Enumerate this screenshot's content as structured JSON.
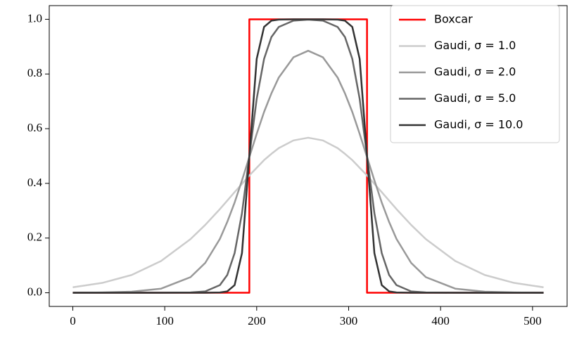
{
  "chart_data": {
    "type": "line",
    "xlim": [
      -25.6,
      537.6
    ],
    "ylim": [
      -0.05,
      1.05
    ],
    "xticks": [
      0,
      100,
      200,
      300,
      400,
      500
    ],
    "yticks": [
      {
        "value": 0,
        "label": "0.0"
      },
      {
        "value": 0.2,
        "label": "0.2"
      },
      {
        "value": 0.4,
        "label": "0.4"
      },
      {
        "value": 0.6,
        "label": "0.6"
      },
      {
        "value": 0.8,
        "label": "0.8"
      },
      {
        "value": 1,
        "label": "1.0"
      }
    ],
    "legend": "upper right",
    "x": [
      0,
      32,
      64,
      96,
      128,
      144,
      160,
      168,
      176,
      184,
      192,
      200,
      208,
      216,
      224,
      240,
      256,
      272,
      288,
      296,
      304,
      312,
      320,
      328,
      336,
      344,
      352,
      368,
      384,
      416,
      448,
      480,
      512
    ],
    "series": [
      {
        "name": "Boxcar",
        "color": "#ff0000",
        "x": [
          0,
          192,
          192,
          320,
          320,
          512
        ],
        "values": [
          0,
          0,
          1,
          1,
          0,
          0
        ]
      },
      {
        "name": "Gaudi, σ = 1.0",
        "color": "#cccccc",
        "values": [
          0.02,
          0.036,
          0.065,
          0.116,
          0.196,
          0.248,
          0.306,
          0.337,
          0.368,
          0.398,
          0.429,
          0.457,
          0.485,
          0.508,
          0.529,
          0.557,
          0.567,
          0.557,
          0.529,
          0.508,
          0.485,
          0.457,
          0.429,
          0.398,
          0.368,
          0.337,
          0.306,
          0.248,
          0.196,
          0.116,
          0.065,
          0.036,
          0.02
        ]
      },
      {
        "name": "Gaudi, σ = 2.0",
        "color": "#999999",
        "values": [
          0,
          0.001,
          0.004,
          0.015,
          0.057,
          0.109,
          0.197,
          0.259,
          0.33,
          0.411,
          0.496,
          0.581,
          0.661,
          0.729,
          0.787,
          0.861,
          0.885,
          0.861,
          0.787,
          0.729,
          0.661,
          0.581,
          0.496,
          0.411,
          0.33,
          0.259,
          0.197,
          0.109,
          0.057,
          0.015,
          0.004,
          0.001,
          0
        ]
      },
      {
        "name": "Gaudi, σ = 5.0",
        "color": "#666666",
        "values": [
          0,
          0,
          0,
          0,
          0.001,
          0.005,
          0.028,
          0.065,
          0.145,
          0.291,
          0.5,
          0.709,
          0.855,
          0.935,
          0.972,
          0.995,
          0.999,
          0.995,
          0.972,
          0.935,
          0.855,
          0.709,
          0.5,
          0.291,
          0.145,
          0.065,
          0.028,
          0.005,
          0.001,
          0,
          0,
          0,
          0
        ]
      },
      {
        "name": "Gaudi, σ = 10.0",
        "color": "#333333",
        "values": [
          0,
          0,
          0,
          0,
          0,
          0,
          0.001,
          0.005,
          0.028,
          0.145,
          0.5,
          0.855,
          0.972,
          0.995,
          0.999,
          1,
          1,
          1,
          0.999,
          0.995,
          0.972,
          0.855,
          0.5,
          0.145,
          0.028,
          0.005,
          0.001,
          0,
          0,
          0,
          0,
          0,
          0
        ]
      }
    ]
  }
}
